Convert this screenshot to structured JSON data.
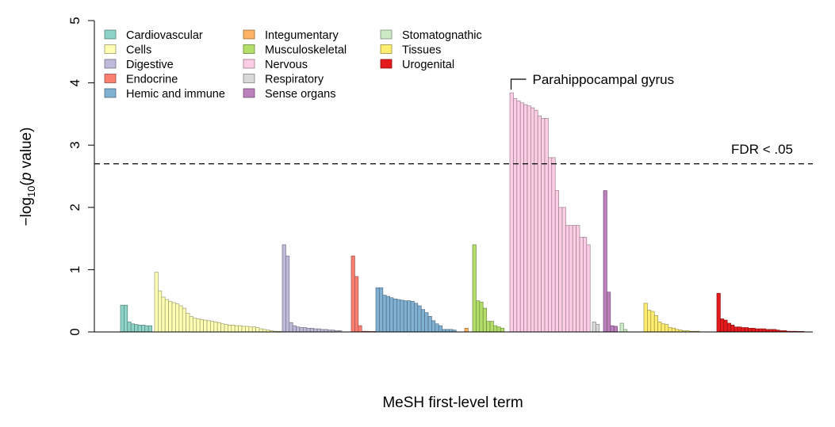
{
  "chart_data": {
    "type": "bar",
    "xlabel": "MeSH first-level term",
    "ylabel": {
      "prefix": "−log",
      "subscript": "10",
      "open": "(",
      "italic": "p",
      "rest": " value)"
    },
    "ylim": [
      0,
      5
    ],
    "yticks": [
      "0",
      "1",
      "2",
      "3",
      "4",
      "5"
    ],
    "threshold": {
      "value": 2.7,
      "label": "FDR < .05"
    },
    "annotation": {
      "label": "Parahippocampal gyrus",
      "category": "Nervous"
    },
    "legend": [
      {
        "name": "Cardiovascular",
        "color": "#8dd3c7"
      },
      {
        "name": "Cells",
        "color": "#ffffb3"
      },
      {
        "name": "Digestive",
        "color": "#bebada"
      },
      {
        "name": "Endocrine",
        "color": "#fb8072"
      },
      {
        "name": "Hemic and immune",
        "color": "#80b1d3"
      },
      {
        "name": "Integumentary",
        "color": "#fdb462"
      },
      {
        "name": "Musculoskeletal",
        "color": "#b3de69"
      },
      {
        "name": "Nervous",
        "color": "#fccde5"
      },
      {
        "name": "Respiratory",
        "color": "#d9d9d9"
      },
      {
        "name": "Sense organs",
        "color": "#bc80bd"
      },
      {
        "name": "Stomatognathic",
        "color": "#ccebc5"
      },
      {
        "name": "Tissues",
        "color": "#ffed6f"
      },
      {
        "name": "Urogenital",
        "color": "#e41a1c"
      }
    ],
    "series": [
      {
        "name": "Cardiovascular",
        "color": "#8dd3c7",
        "values": [
          0.43,
          0.43,
          0.16,
          0.13,
          0.12,
          0.11,
          0.11,
          0.1,
          0.1
        ]
      },
      {
        "name": "Cells",
        "color": "#ffffb3",
        "values": [
          0.96,
          0.66,
          0.56,
          0.52,
          0.49,
          0.47,
          0.45,
          0.42,
          0.38,
          0.3,
          0.25,
          0.22,
          0.21,
          0.2,
          0.19,
          0.18,
          0.17,
          0.16,
          0.15,
          0.13,
          0.12,
          0.11,
          0.11,
          0.1,
          0.1,
          0.09,
          0.09,
          0.08,
          0.08,
          0.07,
          0.05,
          0.04,
          0.03,
          0.02,
          0.01,
          0.01,
          0.005
        ]
      },
      {
        "name": "Digestive",
        "color": "#bebada",
        "values": [
          1.4,
          1.22,
          0.15,
          0.1,
          0.08,
          0.07,
          0.07,
          0.06,
          0.06,
          0.05,
          0.05,
          0.04,
          0.04,
          0.03,
          0.03,
          0.02,
          0.02
        ]
      },
      {
        "name": "Endocrine",
        "color": "#fb8072",
        "values": [
          1.22,
          0.89,
          0.1,
          0.01,
          0.01,
          0.005,
          0.005
        ]
      },
      {
        "name": "Hemic and immune",
        "color": "#80b1d3",
        "values": [
          0.71,
          0.71,
          0.59,
          0.57,
          0.55,
          0.53,
          0.52,
          0.51,
          0.5,
          0.5,
          0.49,
          0.46,
          0.42,
          0.36,
          0.31,
          0.25,
          0.18,
          0.13,
          0.1,
          0.04,
          0.04,
          0.04,
          0.03
        ]
      },
      {
        "name": "Integumentary",
        "color": "#fdb462",
        "values": [
          0.06
        ]
      },
      {
        "name": "Musculoskeletal",
        "color": "#b3de69",
        "values": [
          1.4,
          0.5,
          0.48,
          0.38,
          0.17,
          0.17,
          0.1,
          0.08,
          0.06
        ]
      },
      {
        "name": "Nervous",
        "color": "#fccde5",
        "values": [
          3.84,
          3.75,
          3.71,
          3.68,
          3.65,
          3.63,
          3.6,
          3.56,
          3.47,
          3.43,
          3.43,
          2.8,
          2.8,
          2.27,
          2.0,
          2.0,
          1.71,
          1.71,
          1.71,
          1.71,
          1.52,
          1.52,
          1.4
        ]
      },
      {
        "name": "Respiratory",
        "color": "#d9d9d9",
        "values": [
          0.16,
          0.12
        ]
      },
      {
        "name": "Sense organs",
        "color": "#bc80bd",
        "values": [
          2.27,
          0.64,
          0.1,
          0.09
        ]
      },
      {
        "name": "Stomatognathic",
        "color": "#ccebc5",
        "values": [
          0.14,
          0.04
        ]
      },
      {
        "name": "Tissues",
        "color": "#ffed6f",
        "values": [
          0.46,
          0.35,
          0.33,
          0.26,
          0.16,
          0.13,
          0.12,
          0.07,
          0.06,
          0.04,
          0.03,
          0.02,
          0.02,
          0.01,
          0.01,
          0.01
        ]
      },
      {
        "name": "Urogenital",
        "color": "#e41a1c",
        "values": [
          0.62,
          0.21,
          0.19,
          0.14,
          0.11,
          0.08,
          0.08,
          0.07,
          0.07,
          0.06,
          0.06,
          0.05,
          0.05,
          0.05,
          0.04,
          0.04,
          0.04,
          0.03,
          0.02,
          0.02,
          0.01,
          0.01,
          0.01,
          0.005,
          0.005
        ]
      }
    ]
  }
}
